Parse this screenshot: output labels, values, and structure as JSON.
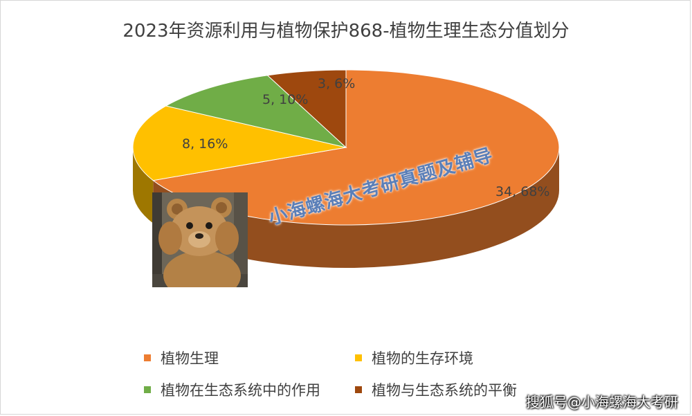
{
  "chart_data": {
    "type": "pie",
    "title": "2023年资源利用与植物保护868-植物生理生态分值划分",
    "slices": [
      {
        "name": "植物生理",
        "value": 34,
        "percent": 68,
        "label": "34, 68%",
        "color": "#ed7d31"
      },
      {
        "name": "植物的生存环境",
        "value": 8,
        "percent": 16,
        "label": "8, 16%",
        "color": "#ffc000"
      },
      {
        "name": "植物在生态系统中的作用",
        "value": 5,
        "percent": 10,
        "label": "5, 10%",
        "color": "#70ad47"
      },
      {
        "name": "植物与生态系统的平衡",
        "value": 3,
        "percent": 6,
        "label": "3, 6%",
        "color": "#9e480e"
      }
    ],
    "legend_position": "bottom"
  },
  "watermark": "小海螺海大考研真题及辅导",
  "credit": "搜狐号@小海螺海大考研"
}
